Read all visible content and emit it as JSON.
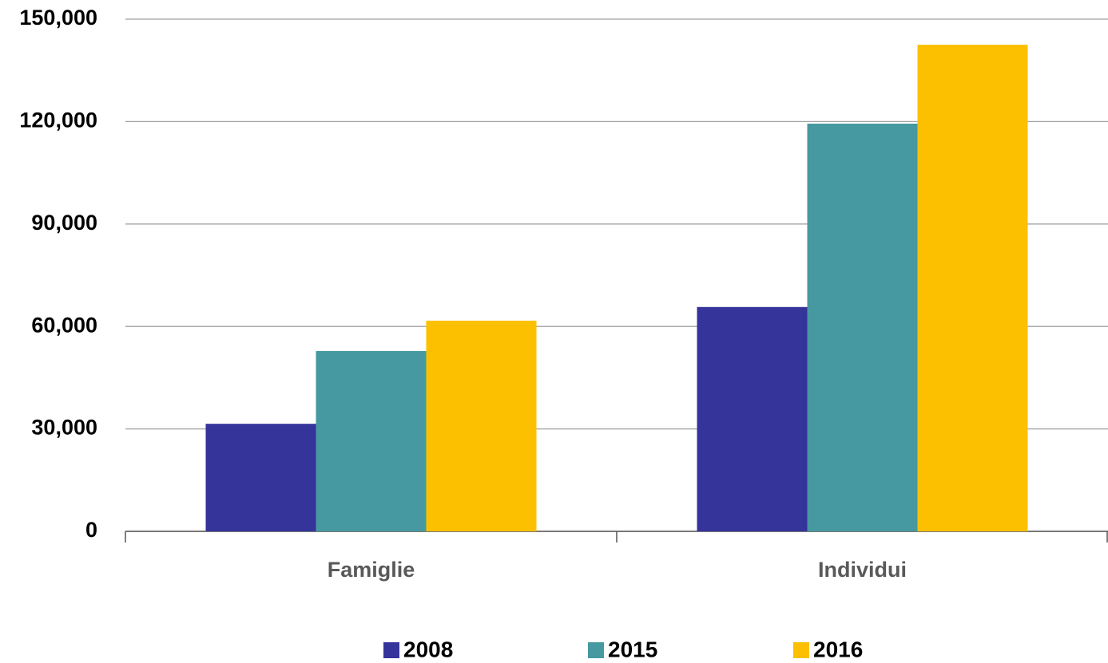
{
  "chart_data": {
    "type": "bar",
    "categories": [
      "Famiglie",
      "Individui"
    ],
    "series": [
      {
        "name": "2008",
        "color": "#35349a",
        "values": [
          31500,
          65700
        ]
      },
      {
        "name": "2015",
        "color": "#4699a0",
        "values": [
          52800,
          119400
        ]
      },
      {
        "name": "2016",
        "color": "#fdc000",
        "values": [
          61700,
          142500
        ]
      }
    ],
    "ylim": [
      0,
      150000
    ],
    "yticks": [
      0,
      {
        "value": 30000,
        "label": "30,000"
      },
      {
        "value": 60000,
        "label": "60,000"
      },
      {
        "value": 90000,
        "label": "90,000"
      },
      {
        "value": 120000,
        "label": "120,000"
      },
      {
        "value": 150000,
        "label": "150,000"
      }
    ],
    "grid": true,
    "legend": "bottom"
  }
}
